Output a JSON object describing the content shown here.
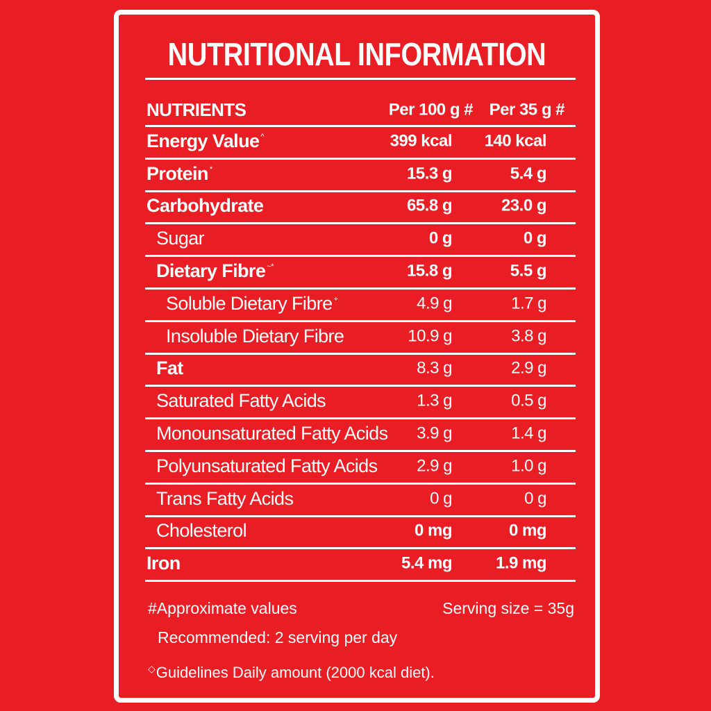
{
  "title": "NUTRITIONAL INFORMATION",
  "header": {
    "nutrients": "NUTRIENTS",
    "per100": "Per 100 g #",
    "per35": "Per 35 g #"
  },
  "rows": [
    {
      "name": "Energy Value",
      "sup": "^",
      "v1": "399 kcal",
      "v2": "140 kcal",
      "level": 0,
      "bold": true,
      "vbold": true
    },
    {
      "name": "Protein",
      "sup": "*",
      "v1": "15.3 g",
      "v2": "5.4 g",
      "level": 0,
      "bold": true,
      "vbold": true
    },
    {
      "name": "Carbohydrate",
      "sup": "",
      "v1": "65.8 g",
      "v2": "23.0 g",
      "level": 0,
      "bold": true,
      "vbold": true
    },
    {
      "name": "Sugar",
      "sup": "",
      "v1": "0 g",
      "v2": "0 g",
      "level": 1,
      "bold": false,
      "vbold": true
    },
    {
      "name": "Dietary Fibre",
      "sup": "~*",
      "v1": "15.8 g",
      "v2": "5.5 g",
      "level": 1,
      "bold": true,
      "vbold": true
    },
    {
      "name": "Soluble Dietary Fibre",
      "sup": "+",
      "v1": "4.9 g",
      "v2": "1.7 g",
      "level": 2,
      "bold": false,
      "vbold": false
    },
    {
      "name": "Insoluble Dietary Fibre",
      "sup": "",
      "v1": "10.9 g",
      "v2": "3.8 g",
      "level": 2,
      "bold": false,
      "vbold": false
    },
    {
      "name": "Fat",
      "sup": "",
      "v1": "8.3 g",
      "v2": "2.9 g",
      "level": 1,
      "bold": true,
      "vbold": false
    },
    {
      "name": "Saturated Fatty Acids",
      "sup": "",
      "v1": "1.3 g",
      "v2": "0.5 g",
      "level": 1,
      "bold": false,
      "vbold": false
    },
    {
      "name": "Monounsaturated Fatty Acids",
      "sup": "",
      "v1": "3.9 g",
      "v2": "1.4 g",
      "level": 1,
      "bold": false,
      "vbold": false
    },
    {
      "name": "Polyunsaturated Fatty Acids",
      "sup": "",
      "v1": "2.9 g",
      "v2": "1.0 g",
      "level": 1,
      "bold": false,
      "vbold": false
    },
    {
      "name": "Trans Fatty Acids",
      "sup": "",
      "v1": "0 g",
      "v2": "0 g",
      "level": 1,
      "bold": false,
      "vbold": false
    },
    {
      "name": "Cholesterol",
      "sup": "",
      "v1": "0 mg",
      "v2": "0 mg",
      "level": 1,
      "bold": false,
      "vbold": true
    },
    {
      "name": "Iron",
      "sup": "",
      "v1": "5.4 mg",
      "v2": "1.9 mg",
      "level": 0,
      "bold": true,
      "vbold": true
    }
  ],
  "footer": {
    "approx": "#Approximate values",
    "serving": "Serving  size = 35g",
    "recommended": "Recommended: 2 serving per day",
    "guidelines_mark": "◇",
    "guidelines": "Guidelines Daily amount (2000 kcal diet)."
  },
  "colors": {
    "background": "#e91e24",
    "text": "#ffffff"
  }
}
